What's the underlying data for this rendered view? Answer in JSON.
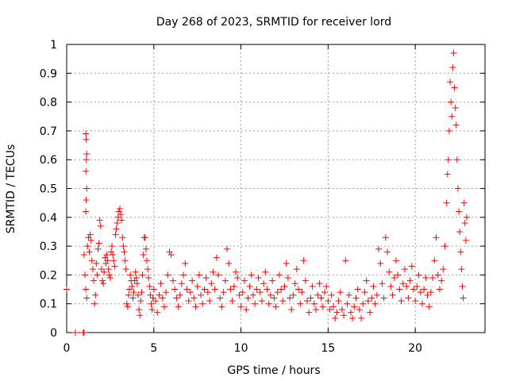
{
  "chart_data": {
    "type": "scatter",
    "title": "Day 268 of 2023, SRMTID for receiver lord",
    "xlabel": "GPS time / hours",
    "ylabel": "SRMTID / TECUs",
    "xlim": [
      0,
      24
    ],
    "ylim": [
      0,
      1
    ],
    "x_ticks": [
      0,
      5,
      10,
      15,
      20
    ],
    "x_tick_labels": [
      "0",
      "5",
      "10",
      "15",
      "20"
    ],
    "y_ticks": [
      0,
      0.1,
      0.2,
      0.3,
      0.4,
      0.5,
      0.6,
      0.7,
      0.8,
      0.9,
      1
    ],
    "y_tick_labels": [
      "0",
      "0.1",
      "0.2",
      "0.3",
      "0.4",
      "0.5",
      "0.6",
      "0.7",
      "0.8",
      "0.9",
      "1"
    ],
    "grid": true,
    "marker": "+",
    "color": "#ff0000",
    "series": [
      {
        "name": "SRMTID",
        "points": [
          [
            0.0,
            0.15
          ],
          [
            0.5,
            0.0
          ],
          [
            0.95,
            0.0
          ],
          [
            1.0,
            0.0
          ],
          [
            1.1,
            0.69
          ],
          [
            1.12,
            0.67
          ],
          [
            1.15,
            0.62
          ],
          [
            1.13,
            0.6
          ],
          [
            1.1,
            0.56
          ],
          [
            1.15,
            0.5
          ],
          [
            1.12,
            0.46
          ],
          [
            1.1,
            0.42
          ],
          [
            1.0,
            0.27
          ],
          [
            1.05,
            0.2
          ],
          [
            1.1,
            0.15
          ],
          [
            1.15,
            0.12
          ],
          [
            1.2,
            0.3
          ],
          [
            1.25,
            0.33
          ],
          [
            1.3,
            0.28
          ],
          [
            1.35,
            0.34
          ],
          [
            1.4,
            0.32
          ],
          [
            1.45,
            0.25
          ],
          [
            1.5,
            0.22
          ],
          [
            1.55,
            0.18
          ],
          [
            1.6,
            0.1
          ],
          [
            1.65,
            0.13
          ],
          [
            1.7,
            0.24
          ],
          [
            1.75,
            0.2
          ],
          [
            1.8,
            0.29
          ],
          [
            1.85,
            0.31
          ],
          [
            1.9,
            0.39
          ],
          [
            1.95,
            0.37
          ],
          [
            2.0,
            0.22
          ],
          [
            2.05,
            0.18
          ],
          [
            2.1,
            0.17
          ],
          [
            2.15,
            0.21
          ],
          [
            2.2,
            0.26
          ],
          [
            2.25,
            0.24
          ],
          [
            2.3,
            0.27
          ],
          [
            2.35,
            0.25
          ],
          [
            2.4,
            0.22
          ],
          [
            2.45,
            0.2
          ],
          [
            2.5,
            0.19
          ],
          [
            2.55,
            0.28
          ],
          [
            2.6,
            0.3
          ],
          [
            2.65,
            0.27
          ],
          [
            2.7,
            0.25
          ],
          [
            2.75,
            0.23
          ],
          [
            2.8,
            0.34
          ],
          [
            2.85,
            0.36
          ],
          [
            2.9,
            0.38
          ],
          [
            2.95,
            0.4
          ],
          [
            3.0,
            0.42
          ],
          [
            3.05,
            0.43
          ],
          [
            3.1,
            0.41
          ],
          [
            3.15,
            0.39
          ],
          [
            3.2,
            0.33
          ],
          [
            3.25,
            0.3
          ],
          [
            3.3,
            0.28
          ],
          [
            3.35,
            0.25
          ],
          [
            3.4,
            0.22
          ],
          [
            3.45,
            0.1
          ],
          [
            3.5,
            0.09
          ],
          [
            3.55,
            0.13
          ],
          [
            3.6,
            0.15
          ],
          [
            3.65,
            0.2
          ],
          [
            3.7,
            0.18
          ],
          [
            3.75,
            0.16
          ],
          [
            3.8,
            0.12
          ],
          [
            3.85,
            0.14
          ],
          [
            3.9,
            0.18
          ],
          [
            3.95,
            0.21
          ],
          [
            4.0,
            0.19
          ],
          [
            4.05,
            0.17
          ],
          [
            4.1,
            0.13
          ],
          [
            4.15,
            0.08
          ],
          [
            4.2,
            0.06
          ],
          [
            4.25,
            0.11
          ],
          [
            4.3,
            0.14
          ],
          [
            4.35,
            0.2
          ],
          [
            4.4,
            0.27
          ],
          [
            4.45,
            0.33
          ],
          [
            4.5,
            0.33
          ],
          [
            4.55,
            0.29
          ],
          [
            4.6,
            0.25
          ],
          [
            4.65,
            0.22
          ],
          [
            4.7,
            0.19
          ],
          [
            4.75,
            0.16
          ],
          [
            4.8,
            0.13
          ],
          [
            4.85,
            0.1
          ],
          [
            4.9,
            0.08
          ],
          [
            4.95,
            0.12
          ],
          [
            5.0,
            0.15
          ],
          [
            5.1,
            0.11
          ],
          [
            5.2,
            0.07
          ],
          [
            5.3,
            0.13
          ],
          [
            5.4,
            0.17
          ],
          [
            5.5,
            0.12
          ],
          [
            5.6,
            0.09
          ],
          [
            5.7,
            0.14
          ],
          [
            5.8,
            0.2
          ],
          [
            5.9,
            0.28
          ],
          [
            6.0,
            0.27
          ],
          [
            6.1,
            0.18
          ],
          [
            6.2,
            0.15
          ],
          [
            6.3,
            0.12
          ],
          [
            6.4,
            0.09
          ],
          [
            6.5,
            0.13
          ],
          [
            6.6,
            0.17
          ],
          [
            6.7,
            0.2
          ],
          [
            6.8,
            0.24
          ],
          [
            6.9,
            0.15
          ],
          [
            7.0,
            0.11
          ],
          [
            7.1,
            0.14
          ],
          [
            7.2,
            0.18
          ],
          [
            7.3,
            0.12
          ],
          [
            7.4,
            0.09
          ],
          [
            7.5,
            0.16
          ],
          [
            7.6,
            0.2
          ],
          [
            7.7,
            0.13
          ],
          [
            7.8,
            0.1
          ],
          [
            7.9,
            0.15
          ],
          [
            8.0,
            0.19
          ],
          [
            8.1,
            0.14
          ],
          [
            8.2,
            0.11
          ],
          [
            8.3,
            0.17
          ],
          [
            8.4,
            0.21
          ],
          [
            8.5,
            0.15
          ],
          [
            8.6,
            0.26
          ],
          [
            8.7,
            0.2
          ],
          [
            8.8,
            0.12
          ],
          [
            8.9,
            0.09
          ],
          [
            9.0,
            0.14
          ],
          [
            9.1,
            0.18
          ],
          [
            9.2,
            0.29
          ],
          [
            9.3,
            0.24
          ],
          [
            9.4,
            0.15
          ],
          [
            9.5,
            0.11
          ],
          [
            9.6,
            0.16
          ],
          [
            9.7,
            0.21
          ],
          [
            9.8,
            0.19
          ],
          [
            9.9,
            0.13
          ],
          [
            10.0,
            0.09
          ],
          [
            10.1,
            0.14
          ],
          [
            10.2,
            0.18
          ],
          [
            10.3,
            0.08
          ],
          [
            10.4,
            0.12
          ],
          [
            10.5,
            0.16
          ],
          [
            10.6,
            0.2
          ],
          [
            10.7,
            0.13
          ],
          [
            10.8,
            0.1
          ],
          [
            10.9,
            0.15
          ],
          [
            11.0,
            0.19
          ],
          [
            11.1,
            0.14
          ],
          [
            11.2,
            0.11
          ],
          [
            11.3,
            0.17
          ],
          [
            11.4,
            0.21
          ],
          [
            11.5,
            0.15
          ],
          [
            11.6,
            0.1
          ],
          [
            11.7,
            0.13
          ],
          [
            11.8,
            0.18
          ],
          [
            11.9,
            0.12
          ],
          [
            12.0,
            0.09
          ],
          [
            12.1,
            0.14
          ],
          [
            12.2,
            0.2
          ],
          [
            12.3,
            0.15
          ],
          [
            12.4,
            0.11
          ],
          [
            12.5,
            0.16
          ],
          [
            12.6,
            0.24
          ],
          [
            12.7,
            0.19
          ],
          [
            12.8,
            0.12
          ],
          [
            12.9,
            0.08
          ],
          [
            13.0,
            0.13
          ],
          [
            13.1,
            0.17
          ],
          [
            13.2,
            0.22
          ],
          [
            13.3,
            0.15
          ],
          [
            13.4,
            0.1
          ],
          [
            13.5,
            0.14
          ],
          [
            13.6,
            0.25
          ],
          [
            13.7,
            0.18
          ],
          [
            13.8,
            0.11
          ],
          [
            13.9,
            0.07
          ],
          [
            14.0,
            0.12
          ],
          [
            14.1,
            0.16
          ],
          [
            14.2,
            0.1
          ],
          [
            14.3,
            0.08
          ],
          [
            14.4,
            0.13
          ],
          [
            14.5,
            0.17
          ],
          [
            14.6,
            0.12
          ],
          [
            14.7,
            0.09
          ],
          [
            14.8,
            0.14
          ],
          [
            14.9,
            0.16
          ],
          [
            15.0,
            0.11
          ],
          [
            15.1,
            0.08
          ],
          [
            15.2,
            0.13
          ],
          [
            15.3,
            0.09
          ],
          [
            15.4,
            0.05
          ],
          [
            15.5,
            0.07
          ],
          [
            15.6,
            0.11
          ],
          [
            15.7,
            0.14
          ],
          [
            15.8,
            0.08
          ],
          [
            15.9,
            0.06
          ],
          [
            16.0,
            0.25
          ],
          [
            16.1,
            0.1
          ],
          [
            16.2,
            0.13
          ],
          [
            16.3,
            0.07
          ],
          [
            16.4,
            0.05
          ],
          [
            16.5,
            0.09
          ],
          [
            16.6,
            0.12
          ],
          [
            16.7,
            0.15
          ],
          [
            16.8,
            0.08
          ],
          [
            16.9,
            0.05
          ],
          [
            17.0,
            0.1
          ],
          [
            17.1,
            0.14
          ],
          [
            17.2,
            0.18
          ],
          [
            17.3,
            0.11
          ],
          [
            17.4,
            0.07
          ],
          [
            17.5,
            0.12
          ],
          [
            17.6,
            0.16
          ],
          [
            17.7,
            0.1
          ],
          [
            17.8,
            0.13
          ],
          [
            17.9,
            0.29
          ],
          [
            18.0,
            0.24
          ],
          [
            18.1,
            0.17
          ],
          [
            18.2,
            0.12
          ],
          [
            18.3,
            0.33
          ],
          [
            18.4,
            0.28
          ],
          [
            18.5,
            0.21
          ],
          [
            18.6,
            0.16
          ],
          [
            18.7,
            0.13
          ],
          [
            18.8,
            0.19
          ],
          [
            18.9,
            0.25
          ],
          [
            19.0,
            0.2
          ],
          [
            19.1,
            0.15
          ],
          [
            19.2,
            0.11
          ],
          [
            19.3,
            0.17
          ],
          [
            19.4,
            0.22
          ],
          [
            19.5,
            0.16
          ],
          [
            19.6,
            0.12
          ],
          [
            19.7,
            0.18
          ],
          [
            19.8,
            0.23
          ],
          [
            19.9,
            0.15
          ],
          [
            20.0,
            0.11
          ],
          [
            20.1,
            0.16
          ],
          [
            20.2,
            0.2
          ],
          [
            20.3,
            0.14
          ],
          [
            20.4,
            0.1
          ],
          [
            20.5,
            0.15
          ],
          [
            20.6,
            0.19
          ],
          [
            20.7,
            0.13
          ],
          [
            20.8,
            0.09
          ],
          [
            20.9,
            0.14
          ],
          [
            21.0,
            0.19
          ],
          [
            21.1,
            0.25
          ],
          [
            21.2,
            0.33
          ],
          [
            21.3,
            0.2
          ],
          [
            21.4,
            0.15
          ],
          [
            21.5,
            0.18
          ],
          [
            21.6,
            0.22
          ],
          [
            21.7,
            0.3
          ],
          [
            21.8,
            0.45
          ],
          [
            21.85,
            0.55
          ],
          [
            21.9,
            0.6
          ],
          [
            21.95,
            0.7
          ],
          [
            22.0,
            0.87
          ],
          [
            22.05,
            0.8
          ],
          [
            22.1,
            0.75
          ],
          [
            22.15,
            0.92
          ],
          [
            22.2,
            0.97
          ],
          [
            22.25,
            0.85
          ],
          [
            22.3,
            0.78
          ],
          [
            22.35,
            0.72
          ],
          [
            22.4,
            0.6
          ],
          [
            22.45,
            0.5
          ],
          [
            22.5,
            0.42
          ],
          [
            22.55,
            0.35
          ],
          [
            22.6,
            0.28
          ],
          [
            22.65,
            0.22
          ],
          [
            22.7,
            0.16
          ],
          [
            22.75,
            0.12
          ],
          [
            22.8,
            0.45
          ],
          [
            22.85,
            0.38
          ],
          [
            22.9,
            0.32
          ],
          [
            22.95,
            0.4
          ]
        ]
      }
    ]
  }
}
